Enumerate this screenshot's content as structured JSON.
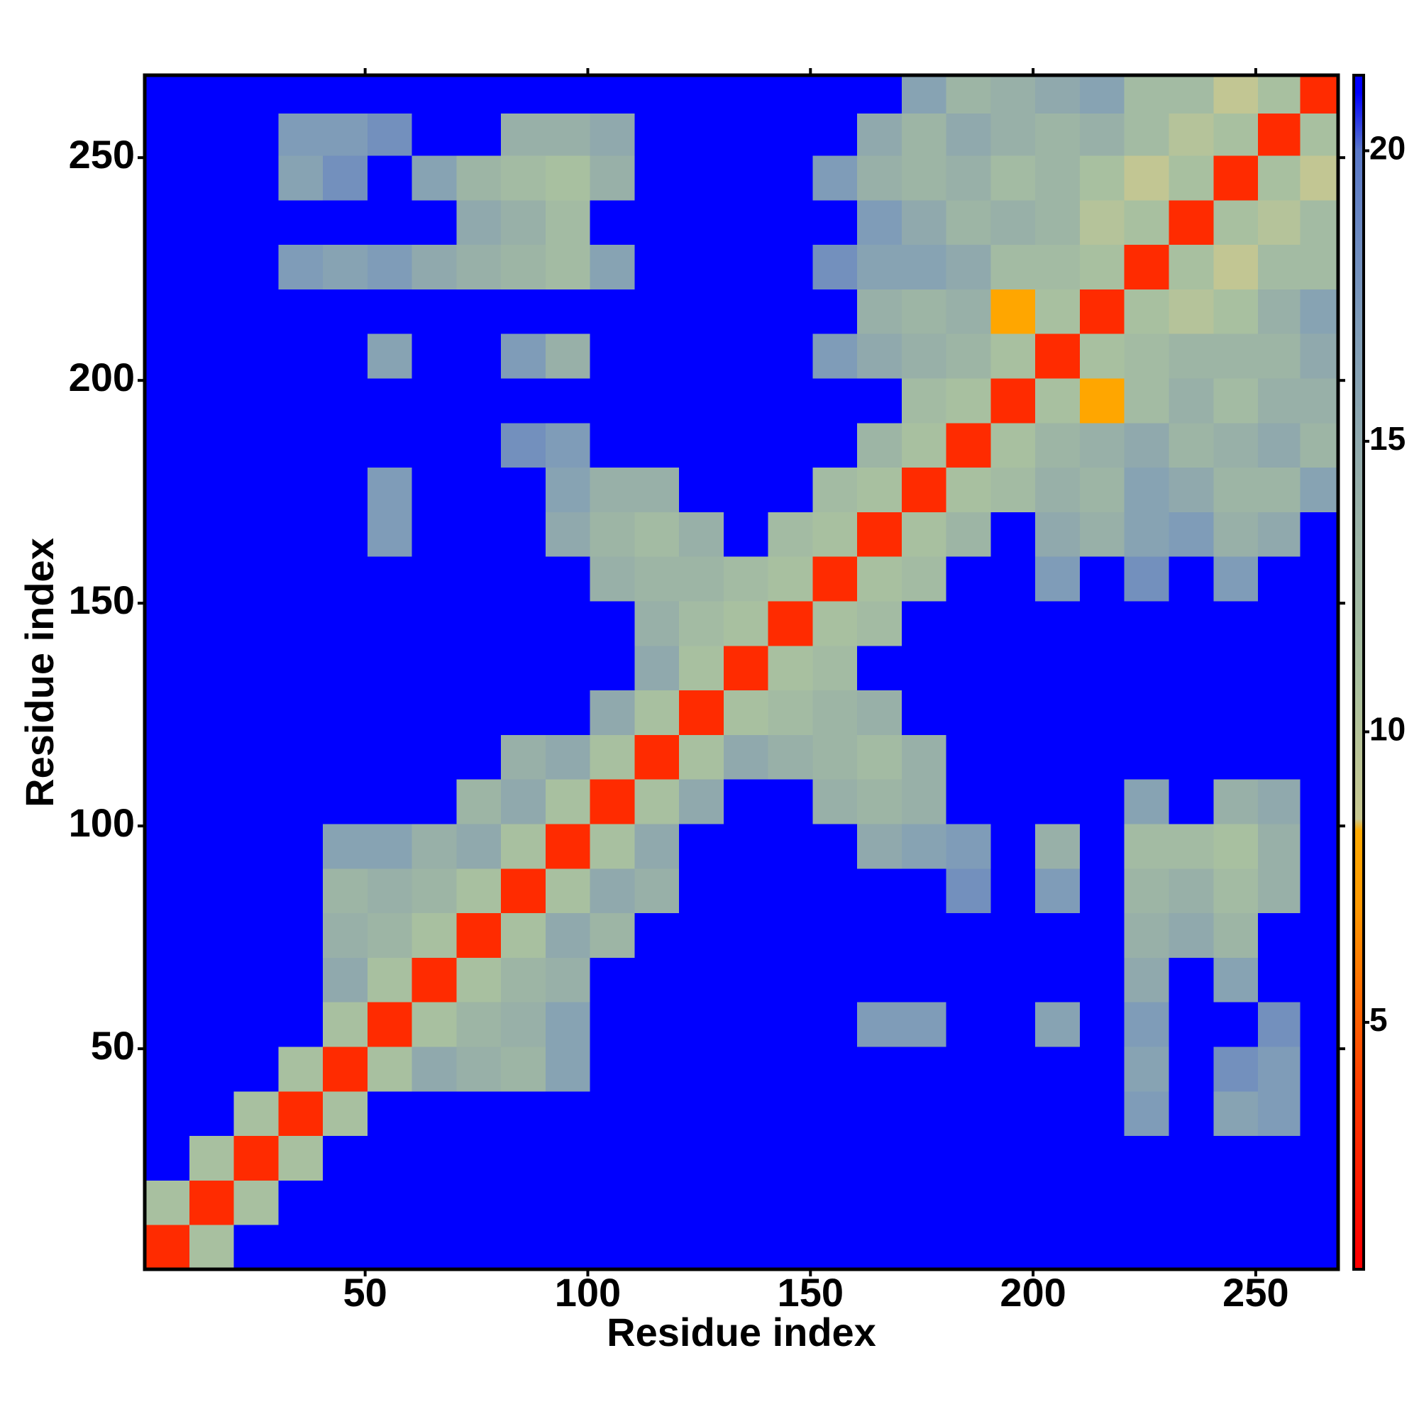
{
  "chart_data": {
    "type": "heatmap",
    "x_label": "Residue index",
    "y_label": "Residue index",
    "x": [
      5.5,
      15.5,
      25.5,
      35.5,
      45.5,
      55.5,
      65.5,
      75.5,
      85.5,
      95.5,
      105.5,
      115.5,
      125.5,
      135.5,
      145.5,
      155.5,
      165.5,
      175.5,
      185.5,
      195.5,
      205.5,
      215.5,
      225.5,
      235.5,
      245.5,
      255.5,
      264.5
    ],
    "y": [
      5.5,
      15.5,
      25.5,
      35.5,
      45.5,
      55.5,
      65.5,
      75.5,
      85.5,
      95.5,
      105.5,
      115.5,
      125.5,
      135.5,
      145.5,
      155.5,
      165.5,
      175.5,
      185.5,
      195.5,
      205.5,
      215.5,
      225.5,
      235.5,
      245.5,
      255.5,
      264.5
    ],
    "z": [
      [
        3,
        11,
        21,
        21,
        21,
        21,
        21,
        21,
        21,
        21,
        21,
        21,
        21,
        21,
        21,
        21,
        21,
        21,
        21,
        21,
        21,
        21,
        21,
        21,
        21,
        21,
        21
      ],
      [
        11,
        3,
        11,
        21,
        21,
        21,
        21,
        21,
        21,
        21,
        21,
        21,
        21,
        21,
        21,
        21,
        21,
        21,
        21,
        21,
        21,
        21,
        21,
        21,
        21,
        21,
        21
      ],
      [
        21,
        11,
        3,
        11,
        21,
        21,
        21,
        21,
        21,
        21,
        21,
        21,
        21,
        21,
        21,
        21,
        21,
        21,
        21,
        21,
        21,
        21,
        21,
        21,
        21,
        21,
        21
      ],
      [
        21,
        21,
        11,
        3,
        11,
        21,
        21,
        21,
        21,
        21,
        21,
        21,
        21,
        21,
        21,
        21,
        21,
        21,
        21,
        21,
        21,
        21,
        17,
        21,
        16,
        17,
        21
      ],
      [
        21,
        21,
        21,
        11,
        3,
        11,
        15,
        14,
        13,
        16,
        21,
        21,
        21,
        21,
        21,
        21,
        21,
        21,
        21,
        21,
        21,
        21,
        16,
        21,
        18,
        17,
        21
      ],
      [
        21,
        21,
        21,
        21,
        11,
        3,
        11,
        13,
        14,
        16,
        21,
        21,
        21,
        21,
        21,
        21,
        17,
        17,
        21,
        21,
        16,
        21,
        17,
        21,
        21,
        18,
        21
      ],
      [
        21,
        21,
        21,
        21,
        15,
        11,
        3,
        11,
        13,
        14,
        21,
        21,
        21,
        21,
        21,
        21,
        21,
        21,
        21,
        21,
        21,
        21,
        15,
        21,
        16,
        21,
        21
      ],
      [
        21,
        21,
        21,
        21,
        14,
        13,
        11,
        3,
        11,
        15,
        13,
        21,
        21,
        21,
        21,
        21,
        21,
        21,
        21,
        21,
        21,
        21,
        14,
        15,
        13,
        21,
        21
      ],
      [
        21,
        21,
        21,
        21,
        13,
        14,
        13,
        11,
        3,
        11,
        15,
        14,
        21,
        21,
        21,
        21,
        21,
        21,
        18,
        21,
        17,
        21,
        13,
        14,
        12,
        14,
        21
      ],
      [
        21,
        21,
        21,
        21,
        16,
        16,
        14,
        15,
        11,
        3,
        11,
        15,
        21,
        21,
        21,
        21,
        15,
        16,
        17,
        21,
        14,
        21,
        12,
        12,
        11,
        14,
        21
      ],
      [
        21,
        21,
        21,
        21,
        21,
        21,
        21,
        13,
        15,
        11,
        3,
        11,
        15,
        21,
        21,
        14,
        13,
        14,
        21,
        21,
        21,
        21,
        16,
        21,
        14,
        15,
        21
      ],
      [
        21,
        21,
        21,
        21,
        21,
        21,
        21,
        21,
        14,
        15,
        11,
        3,
        11,
        15,
        14,
        13,
        12,
        14,
        21,
        21,
        21,
        21,
        21,
        21,
        21,
        21,
        21
      ],
      [
        21,
        21,
        21,
        21,
        21,
        21,
        21,
        21,
        21,
        21,
        15,
        11,
        3,
        11,
        12,
        13,
        14,
        21,
        21,
        21,
        21,
        21,
        21,
        21,
        21,
        21,
        21
      ],
      [
        21,
        21,
        21,
        21,
        21,
        21,
        21,
        21,
        21,
        21,
        21,
        15,
        11,
        3,
        11,
        12,
        21,
        21,
        21,
        21,
        21,
        21,
        21,
        21,
        21,
        21,
        21
      ],
      [
        21,
        21,
        21,
        21,
        21,
        21,
        21,
        21,
        21,
        21,
        21,
        14,
        12,
        11,
        3,
        11,
        12,
        21,
        21,
        21,
        21,
        21,
        21,
        21,
        21,
        21,
        21
      ],
      [
        21,
        21,
        21,
        21,
        21,
        21,
        21,
        21,
        21,
        21,
        14,
        13,
        13,
        12,
        11,
        3,
        11,
        12,
        21,
        21,
        17,
        21,
        18,
        21,
        17,
        21,
        21
      ],
      [
        21,
        21,
        21,
        21,
        21,
        17,
        21,
        21,
        21,
        15,
        13,
        12,
        14,
        21,
        12,
        11,
        3,
        11,
        13,
        21,
        15,
        14,
        16,
        17,
        14,
        15,
        21
      ],
      [
        21,
        21,
        21,
        21,
        21,
        17,
        21,
        21,
        21,
        16,
        14,
        14,
        21,
        21,
        21,
        12,
        11,
        3,
        11,
        12,
        14,
        13,
        16,
        15,
        13,
        13,
        16
      ],
      [
        21,
        21,
        21,
        21,
        21,
        21,
        21,
        21,
        18,
        17,
        21,
        21,
        21,
        21,
        21,
        21,
        13,
        11,
        3,
        11,
        13,
        14,
        15,
        13,
        14,
        15,
        13
      ],
      [
        21,
        21,
        21,
        21,
        21,
        21,
        21,
        21,
        21,
        21,
        21,
        21,
        21,
        21,
        21,
        21,
        21,
        12,
        11,
        3,
        11,
        8,
        12,
        14,
        12,
        14,
        14
      ],
      [
        21,
        21,
        21,
        21,
        21,
        16,
        21,
        21,
        17,
        14,
        21,
        21,
        21,
        21,
        21,
        17,
        15,
        14,
        13,
        11,
        3,
        11,
        12,
        13,
        13,
        13,
        15
      ],
      [
        21,
        21,
        21,
        21,
        21,
        21,
        21,
        21,
        21,
        21,
        21,
        21,
        21,
        21,
        21,
        21,
        14,
        13,
        14,
        8,
        11,
        3,
        11,
        10,
        11,
        14,
        16
      ],
      [
        21,
        21,
        21,
        17,
        16,
        17,
        15,
        14,
        13,
        12,
        16,
        21,
        21,
        21,
        21,
        18,
        16,
        16,
        15,
        12,
        12,
        11,
        3,
        11,
        9,
        12,
        12
      ],
      [
        21,
        21,
        21,
        21,
        21,
        21,
        21,
        15,
        14,
        12,
        21,
        21,
        21,
        21,
        21,
        21,
        17,
        15,
        13,
        14,
        13,
        10,
        11,
        3,
        11,
        10,
        12
      ],
      [
        21,
        21,
        21,
        16,
        18,
        21,
        16,
        13,
        12,
        11,
        14,
        21,
        21,
        21,
        21,
        17,
        14,
        13,
        14,
        12,
        13,
        11,
        9,
        11,
        3,
        11,
        9
      ],
      [
        21,
        21,
        21,
        17,
        17,
        18,
        21,
        21,
        14,
        14,
        15,
        21,
        21,
        21,
        21,
        21,
        15,
        13,
        15,
        14,
        13,
        14,
        12,
        10,
        11,
        3,
        11
      ],
      [
        21,
        21,
        21,
        21,
        21,
        21,
        21,
        21,
        21,
        21,
        21,
        21,
        21,
        21,
        21,
        21,
        21,
        16,
        13,
        14,
        15,
        16,
        12,
        12,
        9,
        11,
        3
      ]
    ],
    "xlim": [
      0.5,
      268.5
    ],
    "ylim": [
      0.5,
      268.5
    ],
    "xticks": [
      50,
      100,
      150,
      200,
      250
    ],
    "yticks": [
      50,
      100,
      150,
      200,
      250
    ],
    "zlim": [
      0.75,
      21.3
    ],
    "zticks": [
      5,
      10,
      15,
      20
    ],
    "colorscale": [
      [
        1,
        "#ff0000"
      ],
      [
        4,
        "#ff4000"
      ],
      [
        7,
        "#ff9900"
      ],
      [
        8.3,
        "#ffaa00"
      ],
      [
        8.5,
        "#c8c890"
      ],
      [
        11,
        "#a8c0a0"
      ],
      [
        14,
        "#98b0a8"
      ],
      [
        17,
        "#7f9cb8"
      ],
      [
        20,
        "#5a78c8"
      ],
      [
        21,
        "#0000ff"
      ]
    ]
  }
}
